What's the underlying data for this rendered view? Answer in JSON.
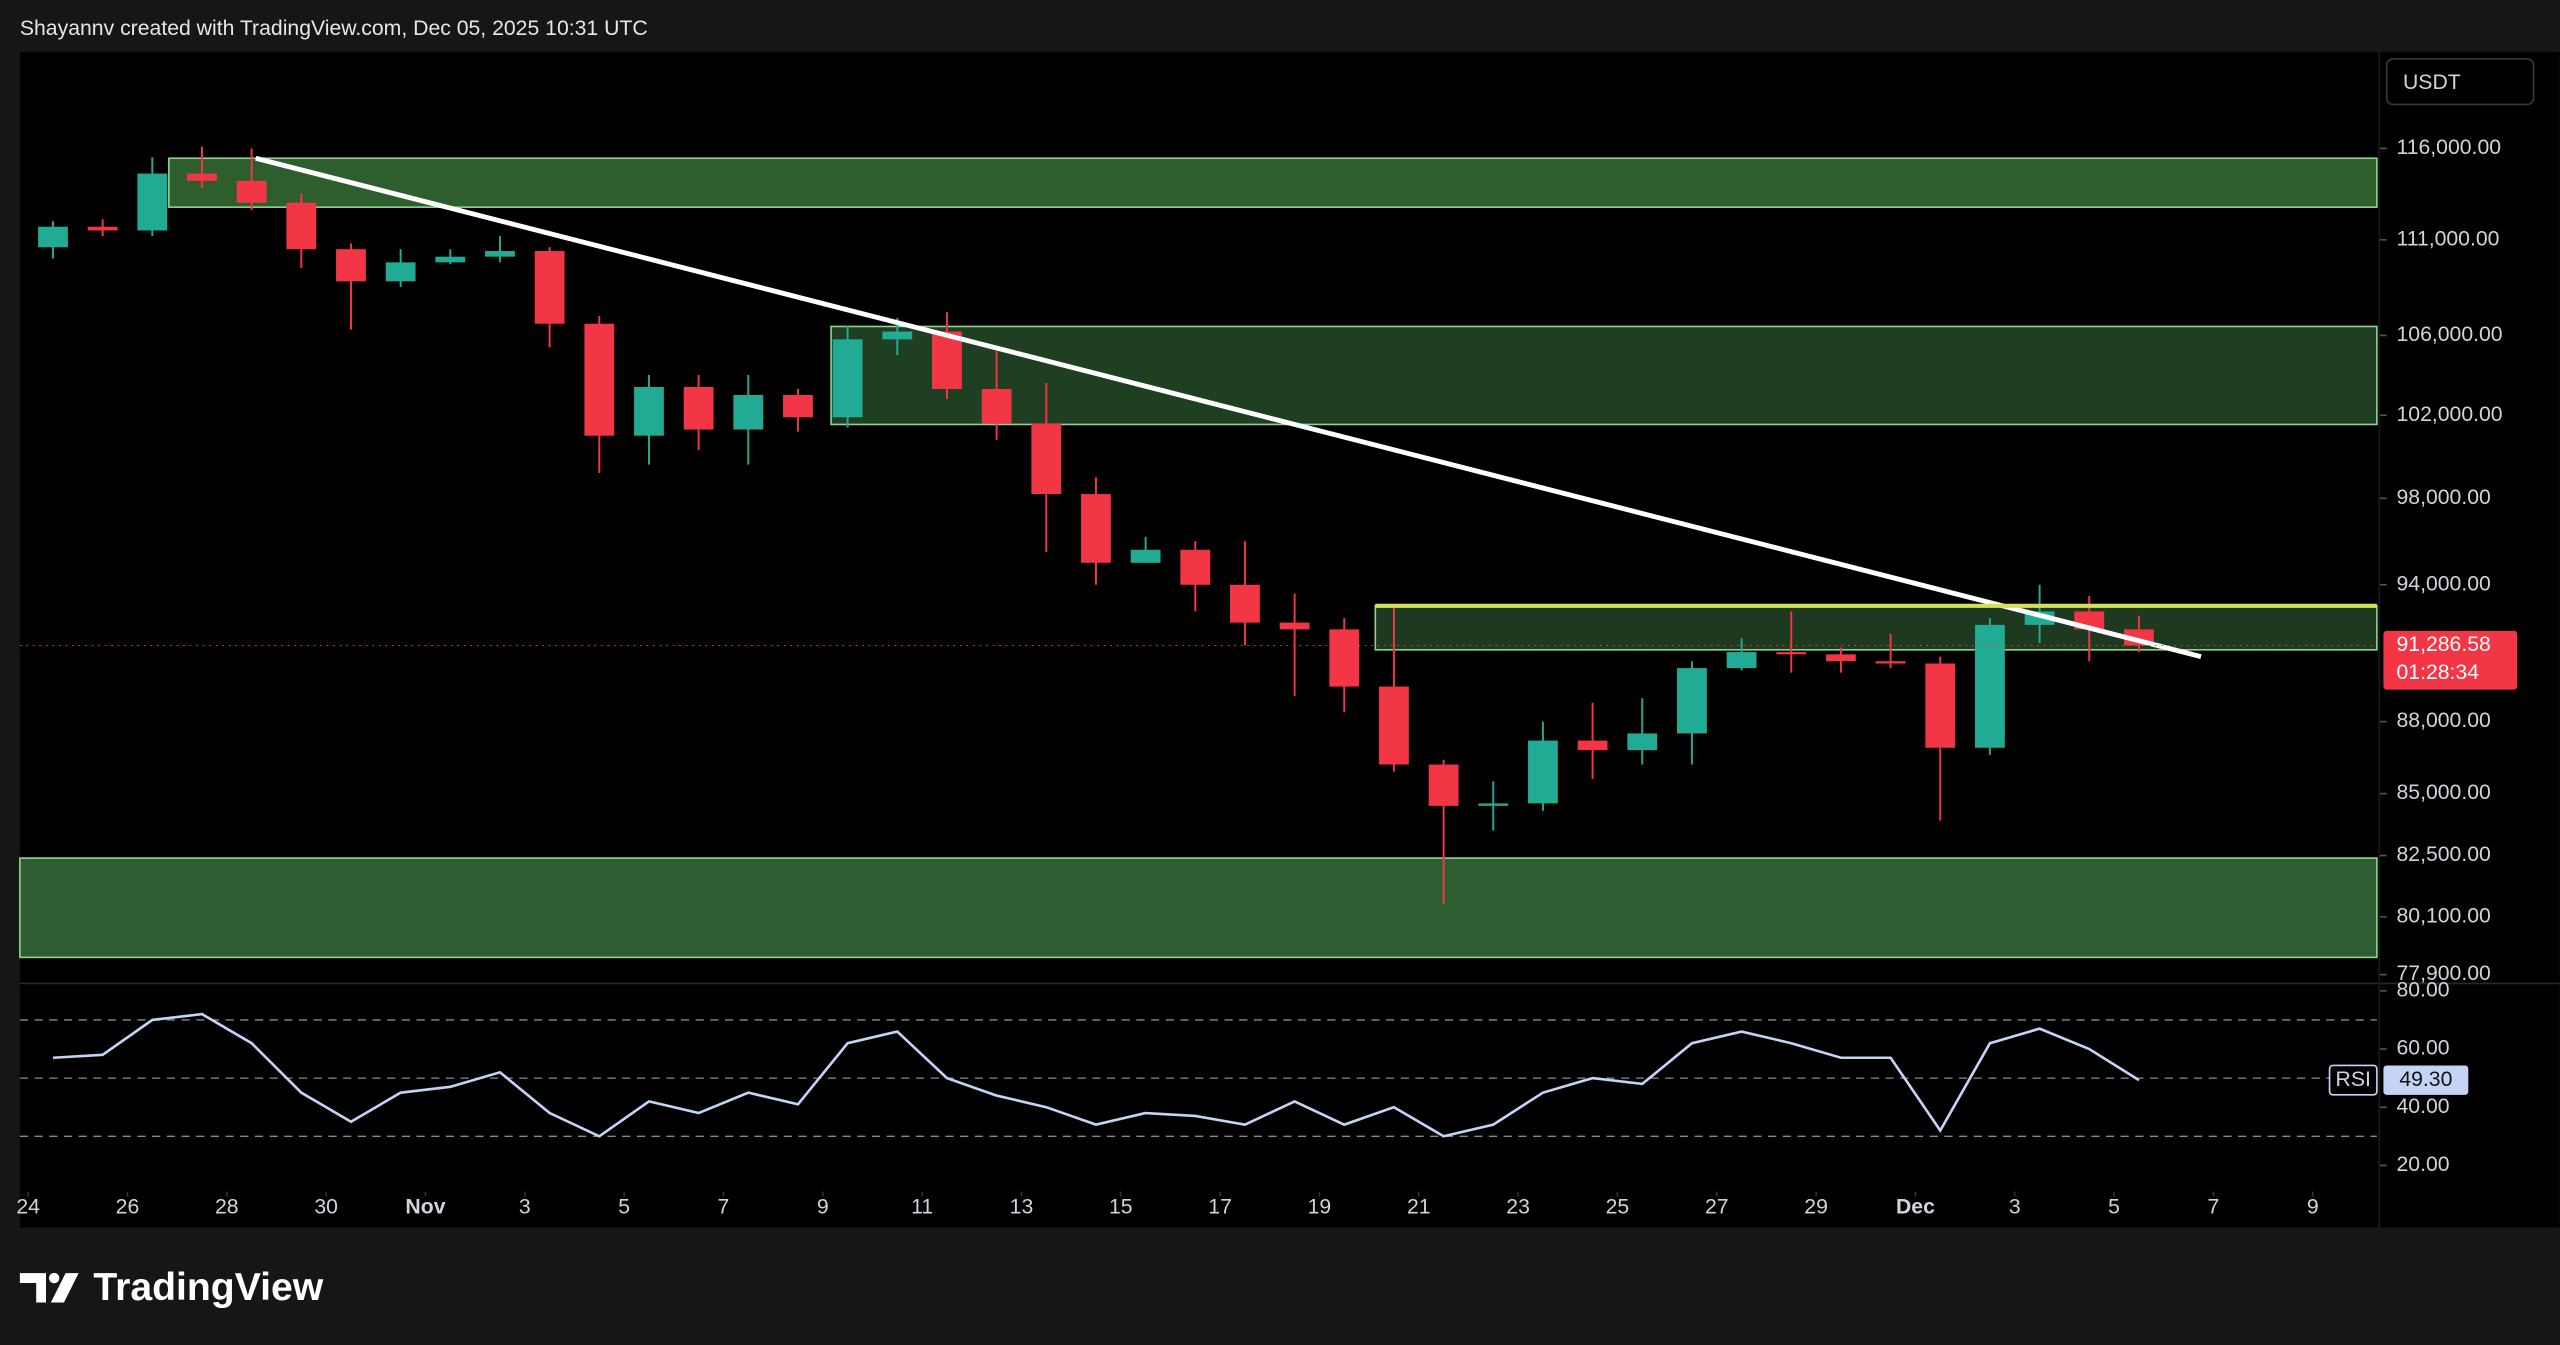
{
  "header": {
    "text": "Shayannv created with TradingView.com, Dec 05, 2025 10:31 UTC"
  },
  "footer": {
    "brand": "TradingView"
  },
  "chart_data": [
    {
      "type": "candlestick",
      "currency": "USDT",
      "log_scale": true,
      "x": [
        "2025-10-24",
        "2025-10-25",
        "2025-10-26",
        "2025-10-27",
        "2025-10-28",
        "2025-10-29",
        "2025-10-30",
        "2025-10-31",
        "2025-11-01",
        "2025-11-02",
        "2025-11-03",
        "2025-11-04",
        "2025-11-05",
        "2025-11-06",
        "2025-11-07",
        "2025-11-08",
        "2025-11-09",
        "2025-11-10",
        "2025-11-11",
        "2025-11-12",
        "2025-11-13",
        "2025-11-14",
        "2025-11-15",
        "2025-11-16",
        "2025-11-17",
        "2025-11-18",
        "2025-11-19",
        "2025-11-20",
        "2025-11-21",
        "2025-11-22",
        "2025-11-23",
        "2025-11-24",
        "2025-11-25",
        "2025-11-26",
        "2025-11-27",
        "2025-11-28",
        "2025-11-29",
        "2025-11-30",
        "2025-12-01",
        "2025-12-02",
        "2025-12-03",
        "2025-12-04",
        "2025-12-05"
      ],
      "open": [
        110600,
        111700,
        111500,
        114600,
        114200,
        113000,
        110500,
        108800,
        109800,
        110100,
        110400,
        106600,
        101000,
        103400,
        101300,
        103000,
        101900,
        105800,
        106200,
        103300,
        101600,
        98200,
        95000,
        95600,
        94000,
        92300,
        92000,
        89500,
        86200,
        84500,
        84600,
        87200,
        86800,
        87500,
        90300,
        91000,
        90900,
        90600,
        90500,
        86900,
        92200,
        92800,
        92000
      ],
      "high": [
        112000,
        112100,
        115500,
        116100,
        116000,
        113500,
        110800,
        110500,
        110500,
        111200,
        110600,
        107000,
        104000,
        104000,
        104000,
        103300,
        106500,
        106900,
        107200,
        105200,
        103600,
        99000,
        96200,
        96000,
        96000,
        93600,
        92500,
        93000,
        86400,
        85500,
        88000,
        88800,
        89000,
        90600,
        91600,
        92800,
        91200,
        91800,
        90800,
        92500,
        94000,
        93500,
        92600
      ],
      "low": [
        110000,
        111200,
        111200,
        113800,
        112600,
        109500,
        106300,
        108500,
        109700,
        109800,
        105400,
        99200,
        99600,
        100300,
        99600,
        101200,
        101400,
        105000,
        102800,
        100800,
        95500,
        94000,
        95000,
        92800,
        91300,
        89100,
        88400,
        85900,
        80600,
        83500,
        84300,
        85600,
        86200,
        86200,
        90200,
        90100,
        90100,
        90300,
        83900,
        86600,
        91400,
        90600,
        91000
      ],
      "close": [
        111700,
        111500,
        114600,
        114200,
        113000,
        110500,
        108800,
        109800,
        110100,
        110400,
        106600,
        101000,
        103400,
        101300,
        103000,
        101900,
        105800,
        106200,
        103300,
        101600,
        98200,
        95000,
        95600,
        94000,
        92300,
        92000,
        89500,
        86200,
        84500,
        84600,
        87200,
        86800,
        87500,
        90300,
        91000,
        90900,
        90600,
        90500,
        86900,
        92200,
        92800,
        92000,
        91286.58
      ],
      "colors": {
        "up": "#22ab94",
        "down": "#f23645"
      },
      "xlim": [
        "2025-10-23T20:00",
        "2025-12-10T07:00"
      ],
      "ylim": [
        77600,
        121500
      ],
      "yticks": [
        {
          "value": 116000,
          "label": "116,000.00"
        },
        {
          "value": 111000,
          "label": "111,000.00"
        },
        {
          "value": 106000,
          "label": "106,000.00"
        },
        {
          "value": 102000,
          "label": "102,000.00"
        },
        {
          "value": 98000,
          "label": "98,000.00"
        },
        {
          "value": 94000,
          "label": "94,000.00"
        },
        {
          "value": 88000,
          "label": "88,000.00"
        },
        {
          "value": 85000,
          "label": "85,000.00"
        },
        {
          "value": 82500,
          "label": "82,500.00"
        },
        {
          "value": 80100,
          "label": "80,100.00"
        },
        {
          "value": 77900,
          "label": "77,900.00"
        }
      ],
      "xticks": [
        {
          "value": "2025-10-24",
          "label": "24"
        },
        {
          "value": "2025-10-26",
          "label": "26"
        },
        {
          "value": "2025-10-28",
          "label": "28"
        },
        {
          "value": "2025-10-30",
          "label": "30"
        },
        {
          "value": "2025-11-01",
          "label": "Nov"
        },
        {
          "value": "2025-11-03",
          "label": "3"
        },
        {
          "value": "2025-11-05",
          "label": "5"
        },
        {
          "value": "2025-11-07",
          "label": "7"
        },
        {
          "value": "2025-11-09",
          "label": "9"
        },
        {
          "value": "2025-11-11",
          "label": "11"
        },
        {
          "value": "2025-11-13",
          "label": "13"
        },
        {
          "value": "2025-11-15",
          "label": "15"
        },
        {
          "value": "2025-11-17",
          "label": "17"
        },
        {
          "value": "2025-11-19",
          "label": "19"
        },
        {
          "value": "2025-11-21",
          "label": "21"
        },
        {
          "value": "2025-11-23",
          "label": "23"
        },
        {
          "value": "2025-11-25",
          "label": "25"
        },
        {
          "value": "2025-11-27",
          "label": "27"
        },
        {
          "value": "2025-11-29",
          "label": "29"
        },
        {
          "value": "2025-12-01",
          "label": "Dec"
        },
        {
          "value": "2025-12-03",
          "label": "3"
        },
        {
          "value": "2025-12-05",
          "label": "5"
        },
        {
          "value": "2025-12-07",
          "label": "7"
        },
        {
          "value": "2025-12-09",
          "label": "9"
        }
      ],
      "last_price": {
        "value": 91286.58,
        "label": "91,286.58"
      },
      "countdown": "01:28:34",
      "zones": [
        {
          "from": "2025-10-26T20:00",
          "high": 115450,
          "low": 112760,
          "color": "#2e5d2e"
        },
        {
          "from": "2025-11-09T04:00",
          "high": 106460,
          "low": 101550,
          "color": "#1f3f22"
        },
        {
          "from": "2025-11-20T03:00",
          "high": 93050,
          "low": 91100,
          "color": "#1d3a20"
        },
        {
          "from": "2025-10-23T20:00",
          "high": 82400,
          "low": 78550,
          "color": "#2e5d31"
        }
      ],
      "lines": [
        {
          "x": [
            "2025-10-28T14:00",
            "2025-12-06T18:00"
          ],
          "y": [
            115450,
            90800
          ],
          "color": "#ffffff"
        },
        {
          "x": [
            "2025-11-20T03:00",
            "2025-12-10T07:00"
          ],
          "y": [
            93050,
            93050
          ],
          "color": "#d4e157"
        }
      ]
    },
    {
      "type": "line",
      "series": [
        {
          "name": "RSI",
          "color": "#c5d3f5",
          "values": [
            57,
            58,
            70,
            72,
            62,
            45,
            35,
            45,
            47,
            52,
            38,
            30,
            42,
            38,
            45,
            41,
            62,
            66,
            50,
            44,
            40,
            34,
            38,
            37,
            34,
            42,
            34,
            40,
            30,
            34,
            45,
            50,
            48,
            62,
            66,
            62,
            57,
            57,
            32,
            62,
            67,
            60,
            49.3
          ],
          "value_labels": [
            null,
            null,
            null,
            null,
            null,
            null,
            null,
            null,
            null,
            null,
            null,
            null,
            null,
            null,
            null,
            null,
            null,
            null,
            null,
            null,
            null,
            null,
            null,
            null,
            null,
            null,
            null,
            null,
            null,
            null,
            null,
            null,
            null,
            null,
            null,
            null,
            null,
            null,
            null,
            null,
            null,
            null,
            "49.30"
          ]
        }
      ],
      "ylim": [
        11,
        81.7
      ],
      "yticks": [
        {
          "value": 80,
          "label": "80.00"
        },
        {
          "value": 60,
          "label": "60.00"
        },
        {
          "value": 40,
          "label": "40.00"
        },
        {
          "value": 20,
          "label": "20.00"
        }
      ],
      "levels": [
        30,
        50,
        70
      ]
    }
  ]
}
